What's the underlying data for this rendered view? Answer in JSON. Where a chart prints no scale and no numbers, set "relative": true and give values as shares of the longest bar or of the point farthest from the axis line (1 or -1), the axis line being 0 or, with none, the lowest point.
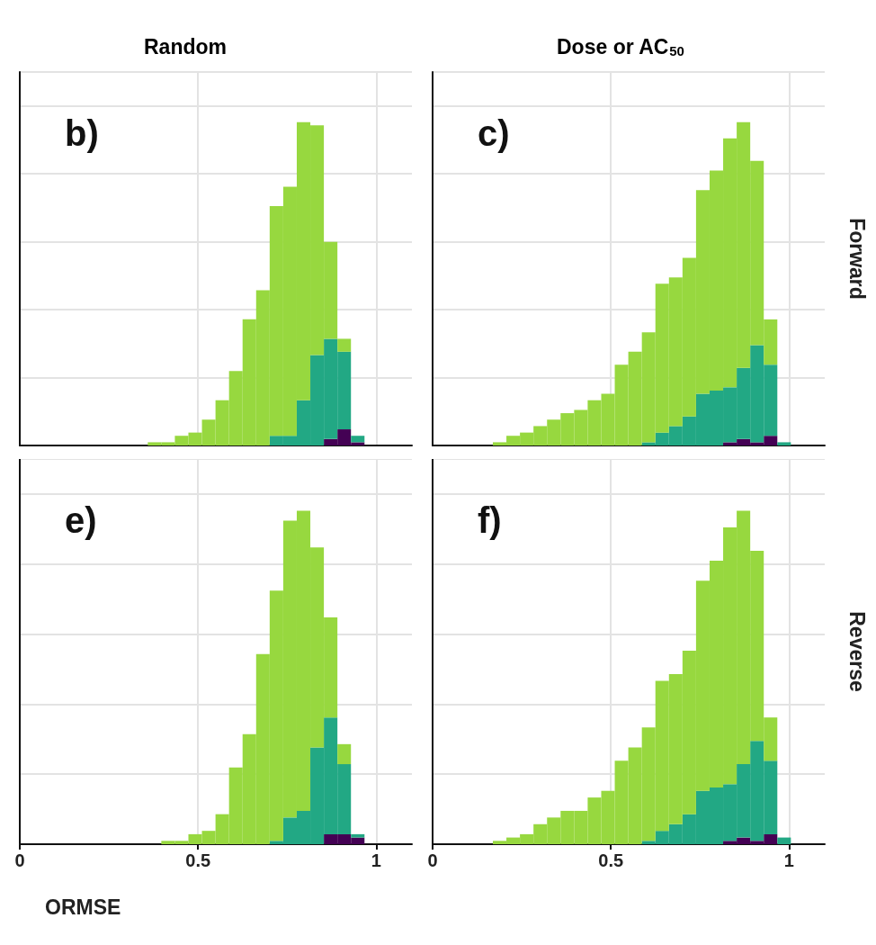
{
  "chart_data": [
    {
      "type": "bar",
      "title": "Random",
      "annotations": [
        "b)"
      ],
      "relative": true,
      "stacked": true,
      "grid": true,
      "tick_labels": false,
      "xlim": [
        0,
        1.1
      ],
      "xticks": [
        0,
        0.5,
        1
      ],
      "x": [
        0.378,
        0.416,
        0.454,
        0.492,
        0.53,
        0.568,
        0.606,
        0.644,
        0.682,
        0.72,
        0.758,
        0.796,
        0.834,
        0.872,
        0.91,
        0.948
      ],
      "series": [
        {
          "color": "#440154",
          "values": [
            null,
            null,
            null,
            null,
            null,
            null,
            null,
            null,
            null,
            null,
            null,
            null,
            null,
            0.02,
            0.05,
            0.01
          ]
        },
        {
          "color": "#22a884",
          "values": [
            null,
            null,
            null,
            null,
            null,
            null,
            null,
            null,
            null,
            0.03,
            0.03,
            0.14,
            0.28,
            0.31,
            0.24,
            0.02
          ]
        },
        {
          "color": "#97d83f",
          "values": [
            0.01,
            0.01,
            0.03,
            0.04,
            0.08,
            0.14,
            0.23,
            0.39,
            0.48,
            0.71,
            0.77,
            0.86,
            0.71,
            0.3,
            0.04,
            null
          ]
        }
      ]
    },
    {
      "type": "bar",
      "title": "Dose or AC$_{50}$",
      "y2label": "Forward",
      "annotations": [
        "c)"
      ],
      "relative": true,
      "stacked": true,
      "grid": true,
      "tick_labels": false,
      "xlim": [
        0,
        1.1
      ],
      "xticks": [
        0,
        0.5,
        1
      ],
      "x": [
        0.188,
        0.226,
        0.264,
        0.302,
        0.34,
        0.378,
        0.416,
        0.454,
        0.492,
        0.53,
        0.568,
        0.606,
        0.644,
        0.682,
        0.72,
        0.758,
        0.796,
        0.834,
        0.872,
        0.91,
        0.948,
        0.986
      ],
      "series": [
        {
          "color": "#440154",
          "values": [
            null,
            null,
            null,
            null,
            null,
            null,
            null,
            null,
            null,
            null,
            null,
            null,
            null,
            null,
            null,
            null,
            null,
            0.01,
            0.02,
            0.01,
            0.03,
            null
          ]
        },
        {
          "color": "#22a884",
          "values": [
            null,
            null,
            null,
            null,
            null,
            null,
            null,
            null,
            null,
            null,
            null,
            0.01,
            0.04,
            0.06,
            0.09,
            0.16,
            0.17,
            0.17,
            0.22,
            0.3,
            0.22,
            0.01
          ]
        },
        {
          "color": "#97d83f",
          "values": [
            0.01,
            0.03,
            0.04,
            0.06,
            0.08,
            0.1,
            0.11,
            0.14,
            0.16,
            0.25,
            0.29,
            0.34,
            0.46,
            0.46,
            0.49,
            0.63,
            0.68,
            0.77,
            0.76,
            0.57,
            0.14,
            null
          ]
        }
      ]
    },
    {
      "type": "bar",
      "xlabel": "ORMSE",
      "annotations": [
        "e)"
      ],
      "relative": true,
      "stacked": true,
      "grid": true,
      "tick_labels": "x",
      "xlim": [
        0,
        1.1
      ],
      "xticks": [
        0,
        0.5,
        1
      ],
      "x": [
        0.416,
        0.454,
        0.492,
        0.53,
        0.568,
        0.606,
        0.644,
        0.682,
        0.72,
        0.758,
        0.796,
        0.834,
        0.872,
        0.91,
        0.948
      ],
      "series": [
        {
          "color": "#440154",
          "values": [
            null,
            null,
            null,
            null,
            null,
            null,
            null,
            null,
            null,
            null,
            null,
            null,
            0.03,
            0.03,
            0.02
          ]
        },
        {
          "color": "#22a884",
          "values": [
            null,
            null,
            null,
            null,
            null,
            null,
            null,
            null,
            0.01,
            0.08,
            0.1,
            0.29,
            0.35,
            0.21,
            0.01
          ]
        },
        {
          "color": "#97d83f",
          "values": [
            0.01,
            0.01,
            0.03,
            0.04,
            0.09,
            0.23,
            0.33,
            0.57,
            0.75,
            0.89,
            0.9,
            0.6,
            0.3,
            0.06,
            null
          ]
        }
      ]
    },
    {
      "type": "bar",
      "y2label": "Reverse",
      "annotations": [
        "f)"
      ],
      "relative": true,
      "stacked": true,
      "grid": true,
      "tick_labels": "x",
      "xlim": [
        0,
        1.1
      ],
      "xticks": [
        0,
        0.5,
        1
      ],
      "x": [
        0.188,
        0.226,
        0.264,
        0.302,
        0.34,
        0.378,
        0.416,
        0.454,
        0.492,
        0.53,
        0.568,
        0.606,
        0.644,
        0.682,
        0.72,
        0.758,
        0.796,
        0.834,
        0.872,
        0.91,
        0.948,
        0.986
      ],
      "series": [
        {
          "color": "#440154",
          "values": [
            null,
            null,
            null,
            null,
            null,
            null,
            null,
            null,
            null,
            null,
            null,
            null,
            null,
            null,
            null,
            null,
            null,
            0.01,
            0.02,
            0.01,
            0.03,
            null
          ]
        },
        {
          "color": "#22a884",
          "values": [
            null,
            null,
            null,
            null,
            null,
            null,
            null,
            null,
            null,
            null,
            null,
            0.01,
            0.04,
            0.06,
            0.09,
            0.16,
            0.17,
            0.17,
            0.22,
            0.3,
            0.22,
            0.02
          ]
        },
        {
          "color": "#97d83f",
          "values": [
            0.01,
            0.02,
            0.03,
            0.06,
            0.08,
            0.1,
            0.1,
            0.14,
            0.16,
            0.25,
            0.29,
            0.34,
            0.45,
            0.45,
            0.49,
            0.63,
            0.68,
            0.77,
            0.76,
            0.57,
            0.13,
            null
          ]
        }
      ]
    }
  ]
}
